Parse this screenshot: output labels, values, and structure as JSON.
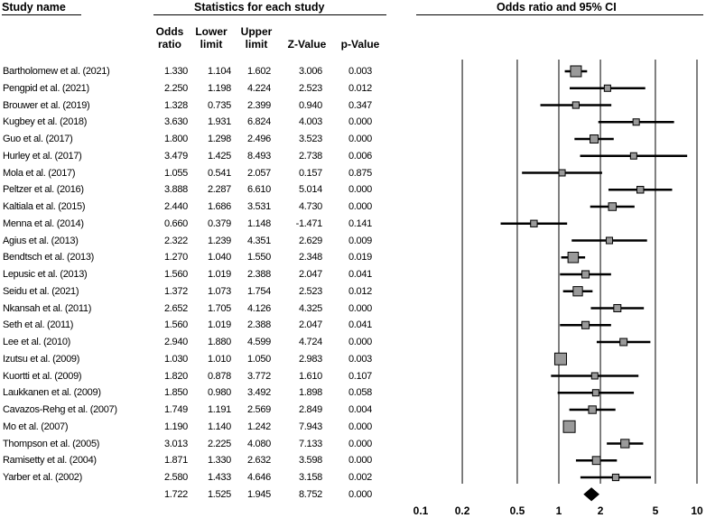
{
  "headers": {
    "study_name": "Study name",
    "stats": "Statistics for each study",
    "plot": "Odds ratio and 95% CI",
    "odds_ratio": "Odds ratio",
    "lower_limit": "Lower limit",
    "upper_limit": "Upper limit",
    "z_value": "Z-Value",
    "p_value": "p-Value"
  },
  "chart_data": {
    "type": "forest",
    "title": "Odds ratio and 95% CI",
    "x_scale": "log",
    "xlim": [
      0.1,
      10
    ],
    "x_ticks": [
      "0.1",
      "0.2",
      "0.5",
      "1",
      "2",
      "5",
      "10"
    ],
    "x_tick_values": [
      0.1,
      0.2,
      0.5,
      1,
      2,
      5,
      10
    ],
    "columns": [
      "Odds ratio",
      "Lower limit",
      "Upper limit",
      "Z-Value",
      "p-Value"
    ],
    "studies": [
      {
        "name": "Bartholomew et al. (2021)",
        "or": "1.330",
        "lower": "1.104",
        "upper": "1.602",
        "z": "3.006",
        "p": "0.003"
      },
      {
        "name": "Pengpid et al. (2021)",
        "or": "2.250",
        "lower": "1.198",
        "upper": "4.224",
        "z": "2.523",
        "p": "0.012"
      },
      {
        "name": "Brouwer et al. (2019)",
        "or": "1.328",
        "lower": "0.735",
        "upper": "2.399",
        "z": "0.940",
        "p": "0.347"
      },
      {
        "name": "Kugbey et al. (2018)",
        "or": "3.630",
        "lower": "1.931",
        "upper": "6.824",
        "z": "4.003",
        "p": "0.000"
      },
      {
        "name": "Guo et al. (2017)",
        "or": "1.800",
        "lower": "1.298",
        "upper": "2.496",
        "z": "3.523",
        "p": "0.000"
      },
      {
        "name": "Hurley et al. (2017)",
        "or": "3.479",
        "lower": "1.425",
        "upper": "8.493",
        "z": "2.738",
        "p": "0.006"
      },
      {
        "name": "Mola et al. (2017)",
        "or": "1.055",
        "lower": "0.541",
        "upper": "2.057",
        "z": "0.157",
        "p": "0.875"
      },
      {
        "name": "Peltzer et al. (2016)",
        "or": "3.888",
        "lower": "2.287",
        "upper": "6.610",
        "z": "5.014",
        "p": "0.000"
      },
      {
        "name": "Kaltiala et al. (2015)",
        "or": "2.440",
        "lower": "1.686",
        "upper": "3.531",
        "z": "4.730",
        "p": "0.000"
      },
      {
        "name": "Menna et al. (2014)",
        "or": "0.660",
        "lower": "0.379",
        "upper": "1.148",
        "z": "-1.471",
        "p": "0.141"
      },
      {
        "name": "Agius et al. (2013)",
        "or": "2.322",
        "lower": "1.239",
        "upper": "4.351",
        "z": "2.629",
        "p": "0.009"
      },
      {
        "name": "Bendtsch et al. (2013)",
        "or": "1.270",
        "lower": "1.040",
        "upper": "1.550",
        "z": "2.348",
        "p": "0.019"
      },
      {
        "name": "Lepusic et al. (2013)",
        "or": "1.560",
        "lower": "1.019",
        "upper": "2.388",
        "z": "2.047",
        "p": "0.041"
      },
      {
        "name": "Seidu et al. (2021)",
        "or": "1.372",
        "lower": "1.073",
        "upper": "1.754",
        "z": "2.523",
        "p": "0.012"
      },
      {
        "name": "Nkansah et al. (2011)",
        "or": "2.652",
        "lower": "1.705",
        "upper": "4.126",
        "z": "4.325",
        "p": "0.000"
      },
      {
        "name": "Seth et al. (2011)",
        "or": "1.560",
        "lower": "1.019",
        "upper": "2.388",
        "z": "2.047",
        "p": "0.041"
      },
      {
        "name": "Lee et al. (2010)",
        "or": "2.940",
        "lower": "1.880",
        "upper": "4.599",
        "z": "4.724",
        "p": "0.000"
      },
      {
        "name": "Izutsu et al. (2009)",
        "or": "1.030",
        "lower": "1.010",
        "upper": "1.050",
        "z": "2.983",
        "p": "0.003"
      },
      {
        "name": "Kuortti et al. (2009)",
        "or": "1.820",
        "lower": "0.878",
        "upper": "3.772",
        "z": "1.610",
        "p": "0.107"
      },
      {
        "name": "Laukkanen et al. (2009)",
        "or": "1.850",
        "lower": "0.980",
        "upper": "3.492",
        "z": "1.898",
        "p": "0.058"
      },
      {
        "name": "Cavazos-Rehg et al. (2007)",
        "or": "1.749",
        "lower": "1.191",
        "upper": "2.569",
        "z": "2.849",
        "p": "0.004"
      },
      {
        "name": "Mo et al. (2007)",
        "or": "1.190",
        "lower": "1.140",
        "upper": "1.242",
        "z": "7.943",
        "p": "0.000"
      },
      {
        "name": "Thompson et al. (2005)",
        "or": "3.013",
        "lower": "2.225",
        "upper": "4.080",
        "z": "7.133",
        "p": "0.000"
      },
      {
        "name": "Ramisetty et al. (2004)",
        "or": "1.871",
        "lower": "1.330",
        "upper": "2.632",
        "z": "3.598",
        "p": "0.000"
      },
      {
        "name": "Yarber et al. (2002)",
        "or": "2.580",
        "lower": "1.433",
        "upper": "4.646",
        "z": "3.158",
        "p": "0.002"
      }
    ],
    "pooled": {
      "name": "",
      "or": "1.722",
      "lower": "1.525",
      "upper": "1.945",
      "z": "8.752",
      "p": "0.000"
    }
  }
}
